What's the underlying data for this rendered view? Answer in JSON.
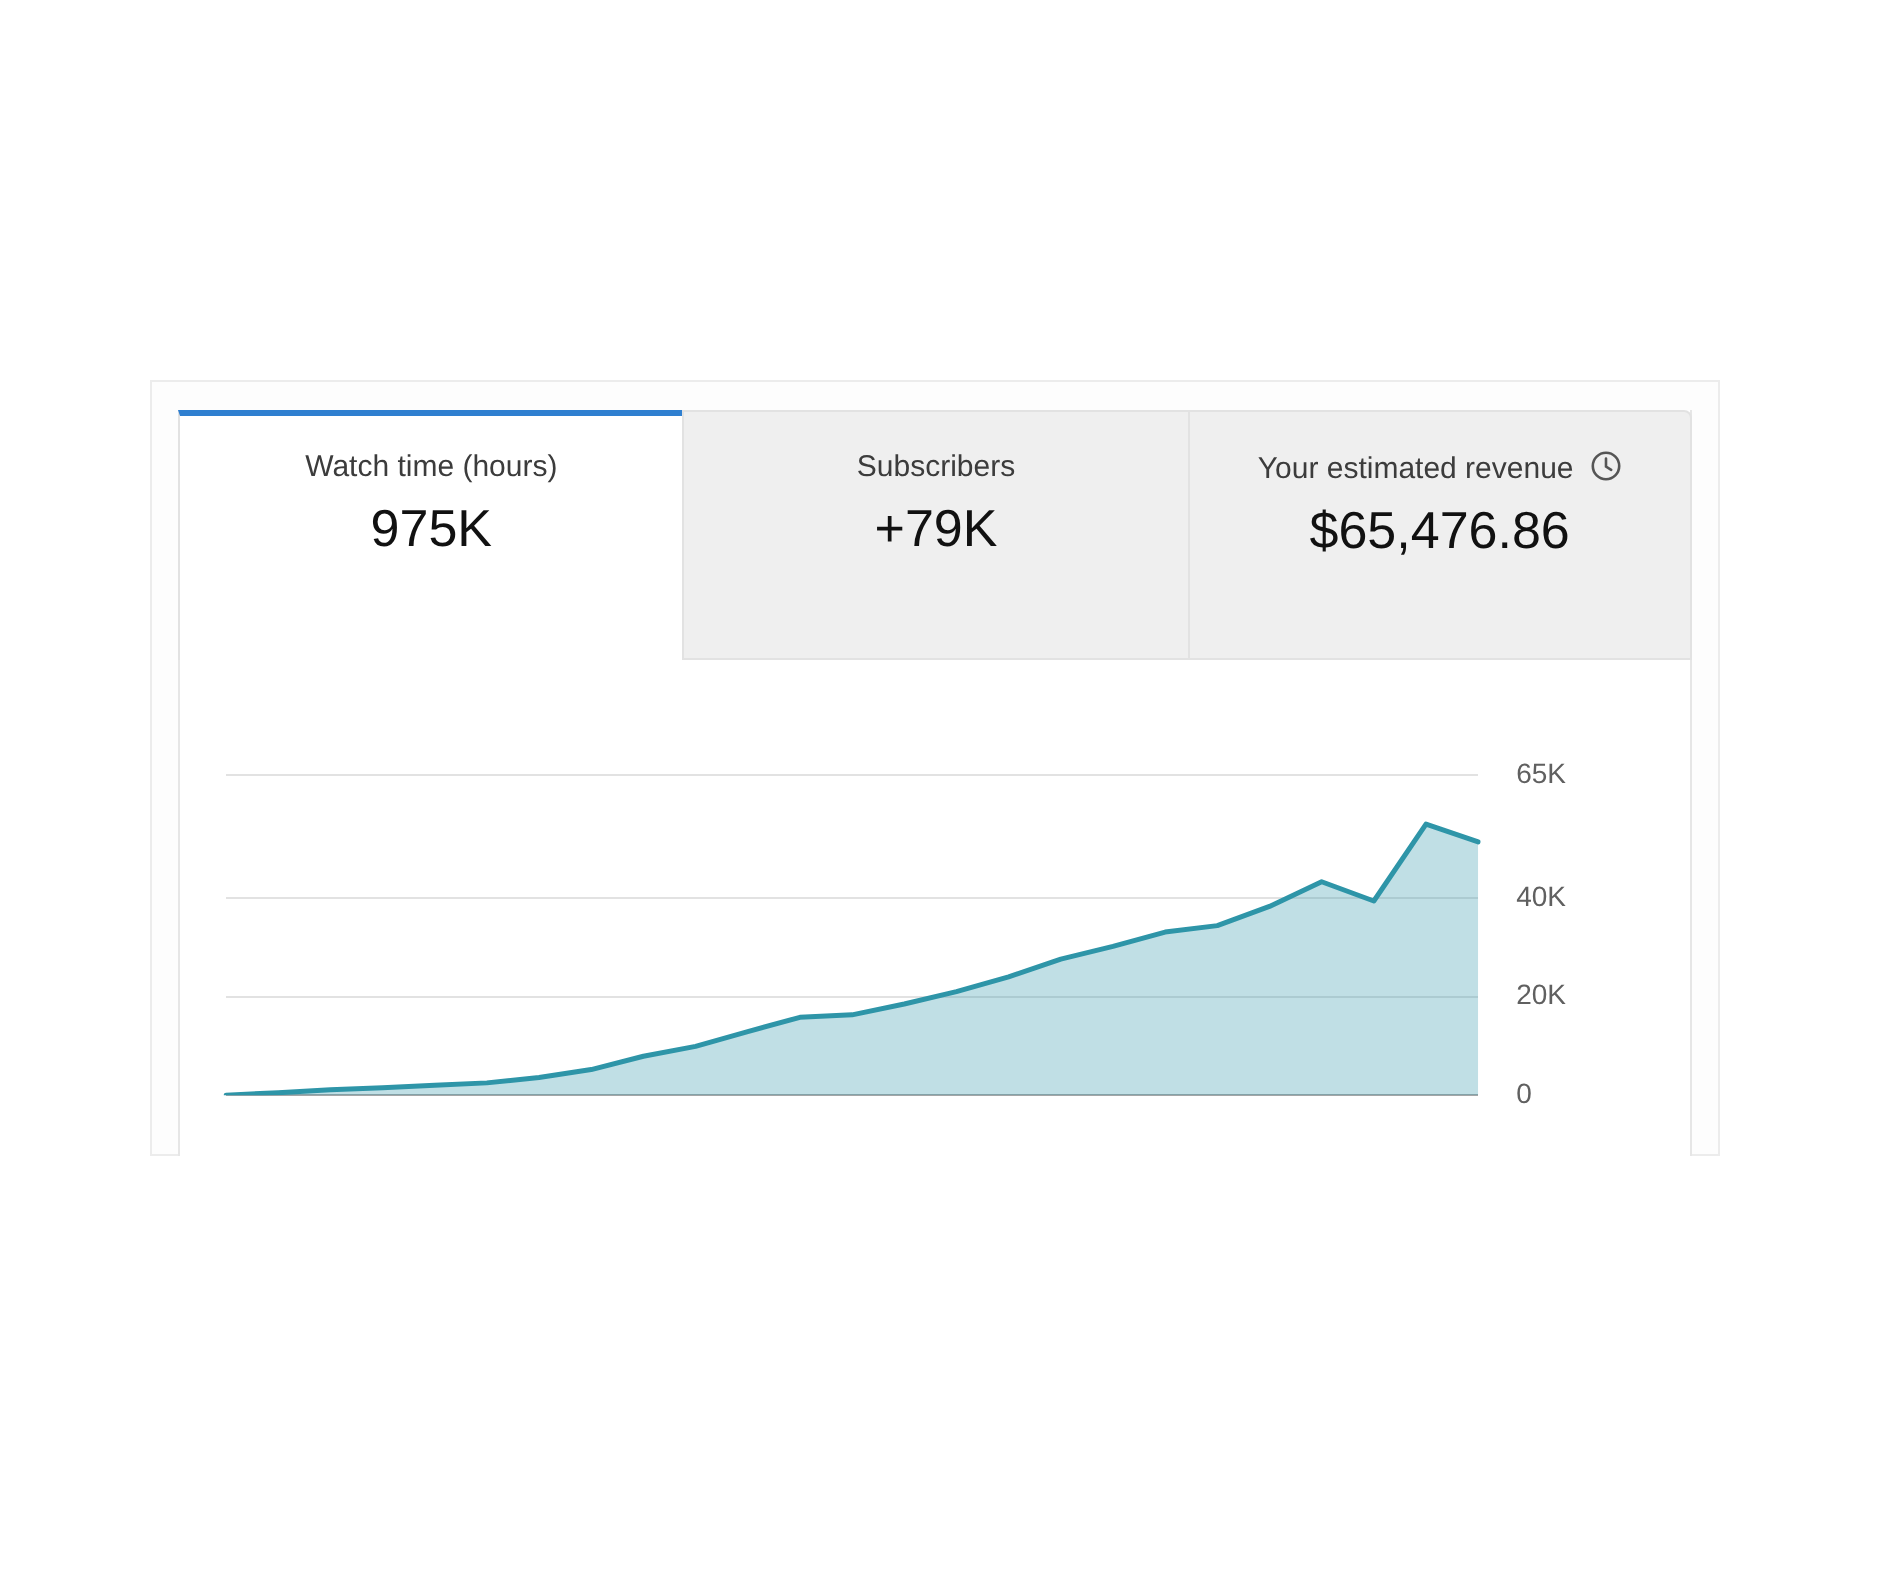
{
  "chart_data": [
    {
      "type": "other",
      "annotations": [
        "Watch time (hours)",
        "975K",
        "Subscribers",
        "+79K",
        "Your estimated revenue",
        "$65,476.86"
      ]
    },
    {
      "type": "area",
      "categories": [
        null,
        null,
        null,
        null,
        null,
        null,
        null,
        null,
        null,
        null,
        null,
        null,
        null,
        null,
        null,
        null,
        null,
        null,
        null,
        null,
        null,
        null,
        null,
        null,
        null
      ],
      "series": [
        {
          "color": "#2e95a8",
          "values": [
            0,
            500,
            1100,
            1500,
            2000,
            2500,
            3600,
            5200,
            7900,
            9900,
            12900,
            15800,
            16300,
            18500,
            21000,
            24000,
            27600,
            30200,
            33100,
            34400,
            38300,
            43300,
            39400,
            55000,
            51400
          ]
        }
      ],
      "ylim": [
        0,
        65000
      ],
      "yticks": [
        0,
        {
          "value": 20000,
          "label": "20K"
        },
        {
          "value": 40000,
          "label": "40K"
        },
        {
          "value": 65000,
          "label": "65K"
        }
      ],
      "grid": "y",
      "legend": false
    }
  ]
}
